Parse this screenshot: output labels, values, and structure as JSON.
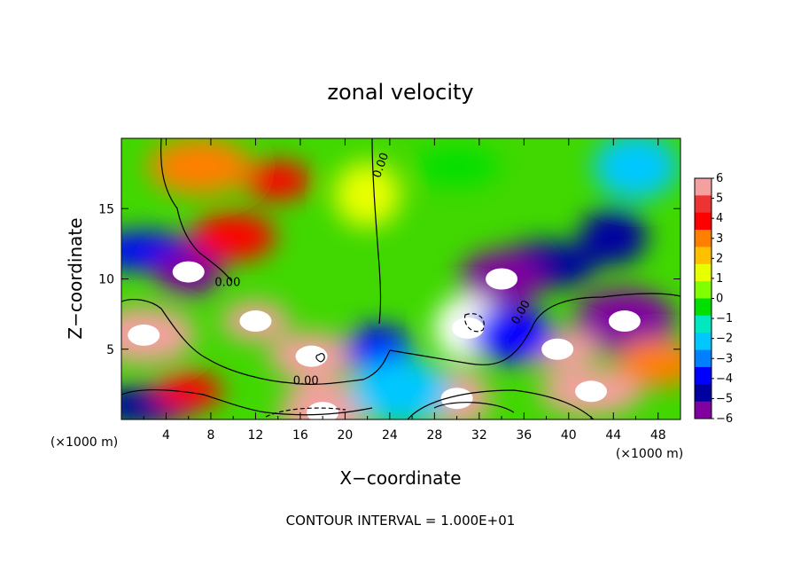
{
  "chart_data": {
    "type": "heatmap",
    "title": "zonal velocity",
    "xlabel": "X−coordinate",
    "ylabel": "Z−coordinate",
    "x_units_left": "(×1000 m)",
    "x_units_right": "(×1000 m)",
    "xlim": [
      0,
      50
    ],
    "ylim": [
      0,
      20
    ],
    "xticks": [
      4,
      8,
      12,
      16,
      20,
      24,
      28,
      32,
      36,
      40,
      44,
      48
    ],
    "xtick_labels": [
      "4",
      "8",
      "12",
      "16",
      "20",
      "24",
      "28",
      "32",
      "36",
      "40",
      "44",
      "48"
    ],
    "yticks": [
      5,
      10,
      15
    ],
    "ytick_labels": [
      "5",
      "10",
      "15"
    ],
    "colorbar": {
      "levels": [
        6,
        5,
        4,
        3,
        2,
        1,
        0,
        -1,
        -2,
        -3,
        -4,
        -5,
        -6
      ],
      "labels": [
        "6",
        "5",
        "4",
        "3",
        "2",
        "1",
        "0",
        "−1",
        "−2",
        "−3",
        "−4",
        "−5",
        "−6"
      ],
      "colors": [
        "#f4a0a0",
        "#ee3333",
        "#ff0000",
        "#ff7f00",
        "#ffc000",
        "#e8ff00",
        "#80ff00",
        "#00e000",
        "#00e8c0",
        "#00c8ff",
        "#0080ff",
        "#0000ff",
        "#0000a0",
        "#8000a0"
      ]
    },
    "contour_labels": [
      "0.00",
      "0.00",
      "0.00",
      "0.00"
    ],
    "field_centers": [
      {
        "x": 14,
        "z": 17,
        "value": 4
      },
      {
        "x": 10,
        "z": 13,
        "value": 4
      },
      {
        "x": 7,
        "z": 18,
        "value": 3
      },
      {
        "x": 22,
        "z": 16,
        "value": 1.5
      },
      {
        "x": 30,
        "z": 18,
        "value": 0
      },
      {
        "x": 38,
        "z": 11,
        "value": -5
      },
      {
        "x": 44,
        "z": 13,
        "value": -5
      },
      {
        "x": 46,
        "z": 18,
        "value": -2
      },
      {
        "x": 2,
        "z": 12,
        "value": -4
      },
      {
        "x": 6,
        "z": 10.5,
        "value": -6
      },
      {
        "x": 34,
        "z": 10,
        "value": -6
      },
      {
        "x": 45,
        "z": 7,
        "value": -6
      },
      {
        "x": 12,
        "z": 7,
        "value": 6
      },
      {
        "x": 17,
        "z": 4.5,
        "value": 6
      },
      {
        "x": 2,
        "z": 6,
        "value": 6
      },
      {
        "x": 31,
        "z": 6.5,
        "value": 7
      },
      {
        "x": 39,
        "z": 5,
        "value": 6
      },
      {
        "x": 42,
        "z": 2,
        "value": 6
      },
      {
        "x": 30,
        "z": 1.5,
        "value": 6
      },
      {
        "x": 18,
        "z": 0.5,
        "value": 6
      },
      {
        "x": 2,
        "z": 1,
        "value": -5
      },
      {
        "x": 23,
        "z": 5,
        "value": -4
      },
      {
        "x": 35,
        "z": 6,
        "value": -4
      },
      {
        "x": 25,
        "z": 2,
        "value": -2
      },
      {
        "x": 6,
        "z": 2,
        "value": 4
      },
      {
        "x": 48,
        "z": 4,
        "value": 3
      }
    ]
  },
  "footer": {
    "contour_interval": "CONTOUR INTERVAL = 1.000E+01"
  }
}
